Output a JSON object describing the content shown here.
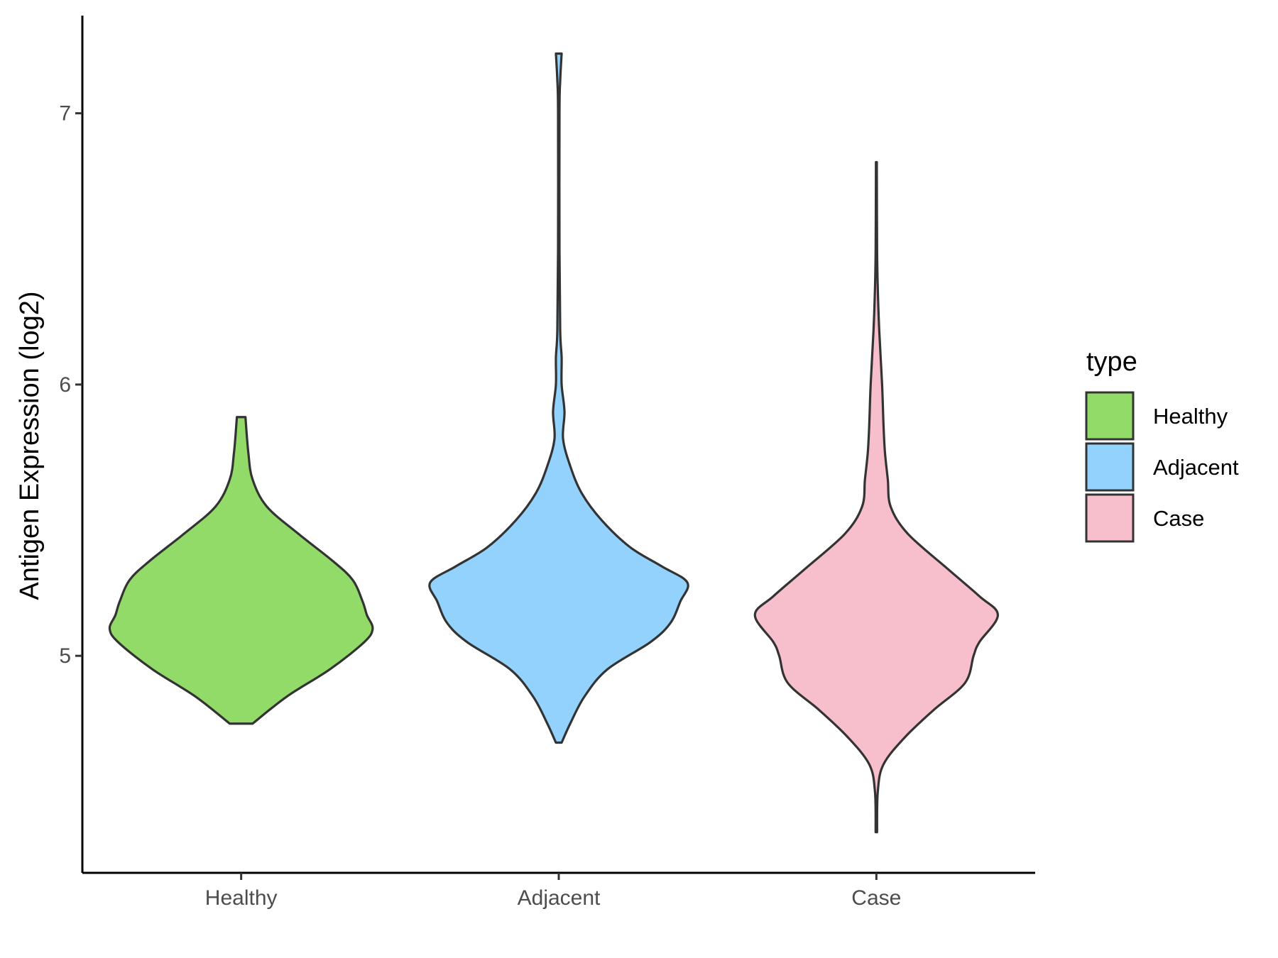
{
  "chart_data": {
    "type": "violin",
    "title": "",
    "xlabel": "",
    "ylabel": "Antigen Expression (log2)",
    "ylim": [
      4.2,
      7.36
    ],
    "yticks": [
      5,
      6,
      7
    ],
    "grid": false,
    "categories": [
      "Healthy",
      "Adjacent",
      "Case"
    ],
    "legend": {
      "title": "type",
      "position": "right",
      "items": [
        {
          "label": "Healthy",
          "color": "#93DB69"
        },
        {
          "label": "Adjacent",
          "color": "#92D2FD"
        },
        {
          "label": "Case",
          "color": "#F7BFCB"
        }
      ]
    },
    "series": [
      {
        "category": "Healthy",
        "color": "#93DB69",
        "min": 4.75,
        "max": 5.88,
        "profile": [
          [
            4.75,
            0.08
          ],
          [
            4.85,
            0.32
          ],
          [
            4.95,
            0.62
          ],
          [
            5.05,
            0.86
          ],
          [
            5.1,
            0.92
          ],
          [
            5.15,
            0.88
          ],
          [
            5.2,
            0.85
          ],
          [
            5.28,
            0.78
          ],
          [
            5.35,
            0.64
          ],
          [
            5.45,
            0.4
          ],
          [
            5.55,
            0.18
          ],
          [
            5.65,
            0.08
          ],
          [
            5.75,
            0.05
          ],
          [
            5.88,
            0.03
          ]
        ]
      },
      {
        "category": "Adjacent",
        "color": "#92D2FD",
        "min": 4.68,
        "max": 7.22,
        "profile": [
          [
            4.68,
            0.02
          ],
          [
            4.75,
            0.08
          ],
          [
            4.85,
            0.18
          ],
          [
            4.95,
            0.34
          ],
          [
            5.05,
            0.64
          ],
          [
            5.12,
            0.78
          ],
          [
            5.2,
            0.85
          ],
          [
            5.27,
            0.9
          ],
          [
            5.33,
            0.72
          ],
          [
            5.4,
            0.5
          ],
          [
            5.5,
            0.3
          ],
          [
            5.6,
            0.16
          ],
          [
            5.7,
            0.08
          ],
          [
            5.8,
            0.03
          ],
          [
            5.9,
            0.04
          ],
          [
            6.0,
            0.02
          ],
          [
            6.1,
            0.02
          ],
          [
            6.2,
            0.01
          ],
          [
            6.5,
            0.005
          ],
          [
            7.0,
            0.005
          ],
          [
            7.12,
            0.01
          ],
          [
            7.22,
            0.02
          ]
        ]
      },
      {
        "category": "Case",
        "color": "#F7BFCB",
        "min": 4.35,
        "max": 6.82,
        "profile": [
          [
            4.35,
            0.005
          ],
          [
            4.5,
            0.01
          ],
          [
            4.6,
            0.05
          ],
          [
            4.7,
            0.2
          ],
          [
            4.8,
            0.4
          ],
          [
            4.9,
            0.62
          ],
          [
            5.0,
            0.68
          ],
          [
            5.05,
            0.72
          ],
          [
            5.15,
            0.85
          ],
          [
            5.22,
            0.72
          ],
          [
            5.32,
            0.5
          ],
          [
            5.45,
            0.22
          ],
          [
            5.55,
            0.1
          ],
          [
            5.65,
            0.08
          ],
          [
            5.75,
            0.06
          ],
          [
            5.85,
            0.05
          ],
          [
            6.0,
            0.04
          ],
          [
            6.2,
            0.02
          ],
          [
            6.35,
            0.01
          ],
          [
            6.5,
            0.005
          ],
          [
            6.82,
            0.003
          ]
        ]
      }
    ]
  }
}
